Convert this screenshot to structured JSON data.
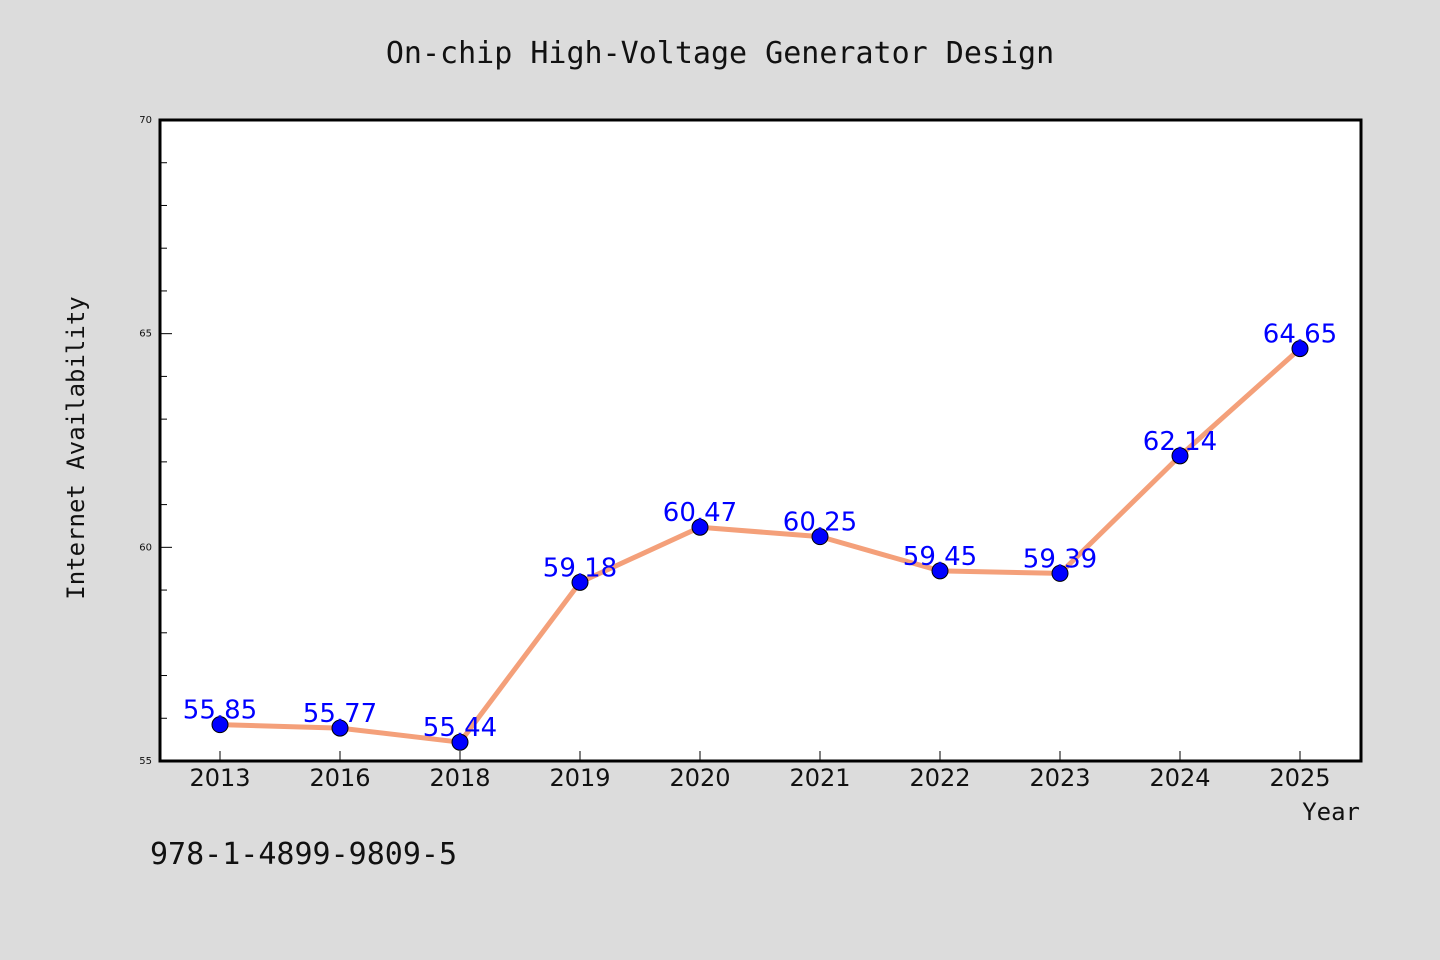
{
  "chart_data": {
    "type": "line",
    "title": "On-chip High-Voltage Generator Design",
    "xlabel": "Year",
    "ylabel": "Internet Availability",
    "categories": [
      "2013",
      "2016",
      "2018",
      "2019",
      "2020",
      "2021",
      "2022",
      "2023",
      "2024",
      "2025"
    ],
    "series": [
      {
        "values": [
          55.85,
          55.77,
          55.44,
          59.18,
          60.47,
          60.25,
          59.45,
          59.39,
          62.14,
          64.65
        ],
        "labels": [
          "55.85",
          "55.77",
          "55.44",
          "59.18",
          "60.47",
          "60.25",
          "59.45",
          "59.39",
          "62.14",
          "64.65"
        ],
        "line_color": "#f4a07a",
        "marker_color": "#0000ff"
      }
    ],
    "ylim": [
      55,
      70
    ],
    "yticks": [
      55,
      60,
      65,
      70
    ],
    "ytick_labels": [
      "55",
      "60",
      "65",
      "70"
    ],
    "y_minor_step": 1,
    "grid": false,
    "legend": "none"
  },
  "annotation": {
    "isbn": "978-1-4899-9809-5"
  },
  "colors": {
    "background": "#dcdcdc",
    "plot_background": "#ffffff",
    "axis": "#000000"
  }
}
